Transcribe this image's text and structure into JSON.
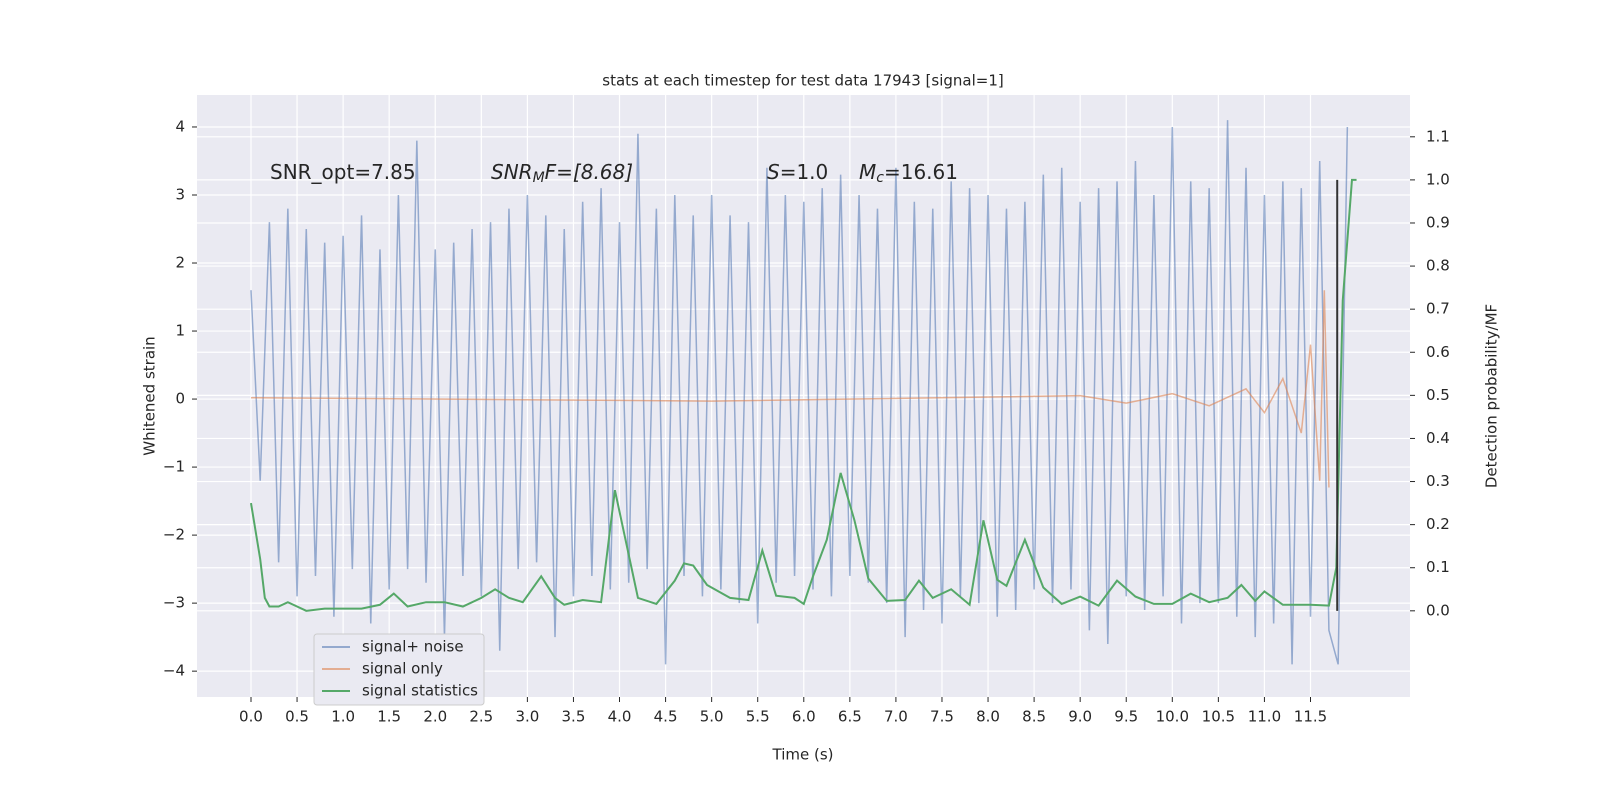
{
  "chart_data": {
    "type": "line",
    "title": "stats at each timestep for test data 17943 [signal=1]",
    "xlabel": "Time (s)",
    "ylabel": "Whitened strain",
    "y2label": "Detection probability/MF",
    "annotations": [
      {
        "main": "SNR_opt=7.85"
      },
      {
        "main": "SNR",
        "sub": "M",
        "rest": "F=[8.68]"
      },
      {
        "main": "S",
        "rest": "=1.0"
      },
      {
        "main": "M",
        "sub": "c",
        "rest": "=16.61"
      }
    ],
    "xlim": [
      -0.586,
      12.58
    ],
    "xticks": [
      {
        "value": 0,
        "label": "0.0"
      },
      0.5,
      {
        "value": 1,
        "label": "1.0"
      },
      1.5,
      {
        "value": 2,
        "label": "2.0"
      },
      2.5,
      {
        "value": 3,
        "label": "3.0"
      },
      3.5,
      {
        "value": 4,
        "label": "4.0"
      },
      4.5,
      {
        "value": 5,
        "label": "5.0"
      },
      5.5,
      {
        "value": 6,
        "label": "6.0"
      },
      6.5,
      {
        "value": 7,
        "label": "7.0"
      },
      7.5,
      {
        "value": 8,
        "label": "8.0"
      },
      8.5,
      {
        "value": 9,
        "label": "9.0"
      },
      9.5,
      {
        "value": 10,
        "label": "10.0"
      },
      10.5,
      {
        "value": 11,
        "label": "11.0"
      },
      11.5
    ],
    "ylim": [
      -4.38,
      4.47
    ],
    "yticks": [
      {
        "value": -4,
        "label": "−4"
      },
      {
        "value": -3,
        "label": "−3"
      },
      {
        "value": -2,
        "label": "−2"
      },
      {
        "value": -1,
        "label": "−1"
      },
      0,
      1,
      2,
      3,
      4
    ],
    "y2lim": [
      -0.2,
      1.197
    ],
    "y2ticks": [
      {
        "value": 0,
        "label": "0.0"
      },
      0.1,
      0.2,
      0.3,
      0.4,
      0.5,
      0.6,
      0.7,
      0.8,
      0.9,
      {
        "value": 1,
        "label": "1.0"
      },
      1.1
    ],
    "grid": true,
    "legend": "lower left",
    "vline": {
      "x": 11.79,
      "ymin": 0,
      "ymax": 1,
      "color": "#333333"
    },
    "series": [
      {
        "name": "signal+ noise",
        "color": "#4c72b0",
        "alpha": 0.55,
        "x": [
          0.0,
          0.1,
          0.2,
          0.3,
          0.4,
          0.5,
          0.6,
          0.7,
          0.8,
          0.9,
          1.0,
          1.1,
          1.2,
          1.3,
          1.4,
          1.5,
          1.6,
          1.7,
          1.8,
          1.9,
          2.0,
          2.1,
          2.2,
          2.3,
          2.4,
          2.5,
          2.6,
          2.7,
          2.8,
          2.9,
          3.0,
          3.1,
          3.2,
          3.3,
          3.4,
          3.5,
          3.6,
          3.7,
          3.8,
          3.9,
          4.0,
          4.1,
          4.2,
          4.3,
          4.4,
          4.5,
          4.6,
          4.7,
          4.8,
          4.9,
          5.0,
          5.1,
          5.2,
          5.3,
          5.4,
          5.5,
          5.6,
          5.7,
          5.8,
          5.9,
          6.0,
          6.1,
          6.2,
          6.3,
          6.4,
          6.5,
          6.6,
          6.7,
          6.8,
          6.9,
          7.0,
          7.1,
          7.2,
          7.3,
          7.4,
          7.5,
          7.6,
          7.7,
          7.8,
          7.9,
          8.0,
          8.1,
          8.2,
          8.3,
          8.4,
          8.5,
          8.6,
          8.7,
          8.8,
          8.9,
          9.0,
          9.1,
          9.2,
          9.3,
          9.4,
          9.5,
          9.6,
          9.7,
          9.8,
          9.9,
          10.0,
          10.1,
          10.2,
          10.3,
          10.4,
          10.5,
          10.6,
          10.7,
          10.8,
          10.9,
          11.0,
          11.1,
          11.2,
          11.3,
          11.4,
          11.5,
          11.6,
          11.7,
          11.8,
          11.9
        ],
        "values": [
          1.6,
          -1.2,
          2.6,
          -2.4,
          2.8,
          -2.9,
          2.5,
          -2.6,
          2.3,
          -3.2,
          2.4,
          -2.5,
          2.7,
          -3.3,
          2.2,
          -2.8,
          3.0,
          -2.5,
          3.8,
          -2.7,
          2.2,
          -3.5,
          2.3,
          -2.6,
          2.5,
          -2.9,
          2.6,
          -3.7,
          2.8,
          -2.5,
          3.0,
          -2.4,
          2.7,
          -3.5,
          2.5,
          -2.9,
          2.9,
          -2.6,
          3.1,
          -2.8,
          2.6,
          -2.7,
          3.9,
          -2.5,
          2.8,
          -3.9,
          3.0,
          -2.6,
          2.7,
          -2.9,
          3.0,
          -2.8,
          2.7,
          -3.0,
          2.6,
          -3.3,
          3.4,
          -2.7,
          3.0,
          -2.6,
          2.9,
          -2.8,
          3.1,
          -2.9,
          3.3,
          -2.6,
          3.0,
          -2.7,
          2.8,
          -3.0,
          3.4,
          -3.5,
          2.9,
          -3.1,
          2.8,
          -3.3,
          3.2,
          -2.9,
          3.1,
          -3.0,
          3.0,
          -3.2,
          2.8,
          -3.1,
          2.9,
          -2.8,
          3.3,
          -3.0,
          3.4,
          -2.8,
          2.9,
          -3.4,
          3.1,
          -3.6,
          3.2,
          -2.9,
          3.5,
          -3.1,
          3.0,
          -2.9,
          4.0,
          -3.3,
          3.2,
          -3.0,
          3.1,
          -3.0,
          4.1,
          -3.2,
          3.4,
          -3.5,
          3.0,
          -3.3,
          3.2,
          -3.9,
          3.1,
          -3.2,
          3.5,
          -3.4,
          -3.9,
          4.0
        ]
      },
      {
        "name": "signal only",
        "color": "#dd8452",
        "alpha": 0.6,
        "x": [
          0.0,
          5.0,
          9.0,
          9.5,
          10.0,
          10.4,
          10.8,
          11.0,
          11.2,
          11.4,
          11.5,
          11.6,
          11.65,
          11.7
        ],
        "values": [
          0.02,
          -0.03,
          0.05,
          -0.06,
          0.08,
          -0.1,
          0.15,
          -0.2,
          0.3,
          -0.5,
          0.8,
          -1.2,
          1.6,
          -1.3
        ]
      },
      {
        "name": "signal statistics",
        "color": "#55a868",
        "alpha": 1,
        "axis": "y2",
        "x": [
          0,
          0.1,
          0.15,
          0.2,
          0.3,
          0.4,
          0.5,
          0.6,
          0.8,
          1.0,
          1.2,
          1.4,
          1.55,
          1.7,
          1.9,
          2.1,
          2.3,
          2.5,
          2.65,
          2.8,
          2.95,
          3.15,
          3.3,
          3.4,
          3.6,
          3.8,
          3.95,
          4.1,
          4.2,
          4.4,
          4.6,
          4.7,
          4.8,
          4.95,
          5.2,
          5.4,
          5.55,
          5.7,
          5.9,
          6.0,
          6.1,
          6.25,
          6.4,
          6.55,
          6.7,
          6.9,
          7.1,
          7.25,
          7.4,
          7.6,
          7.8,
          7.95,
          8.1,
          8.2,
          8.4,
          8.6,
          8.8,
          9.0,
          9.2,
          9.4,
          9.6,
          9.8,
          10.0,
          10.2,
          10.4,
          10.6,
          10.75,
          10.9,
          11.0,
          11.2,
          11.5,
          11.7,
          11.78,
          11.85,
          11.95,
          12.0
        ],
        "values": [
          0.25,
          0.12,
          0.03,
          0.01,
          0.01,
          0.02,
          0.01,
          0.0,
          0.005,
          0.005,
          0.005,
          0.014,
          0.04,
          0.01,
          0.02,
          0.02,
          0.01,
          0.03,
          0.05,
          0.03,
          0.02,
          0.08,
          0.03,
          0.014,
          0.025,
          0.02,
          0.28,
          0.13,
          0.03,
          0.016,
          0.07,
          0.11,
          0.105,
          0.06,
          0.03,
          0.025,
          0.14,
          0.035,
          0.03,
          0.016,
          0.08,
          0.165,
          0.32,
          0.21,
          0.075,
          0.023,
          0.025,
          0.07,
          0.03,
          0.05,
          0.014,
          0.21,
          0.072,
          0.058,
          0.165,
          0.054,
          0.016,
          0.033,
          0.012,
          0.07,
          0.033,
          0.016,
          0.016,
          0.04,
          0.02,
          0.03,
          0.06,
          0.023,
          0.045,
          0.014,
          0.014,
          0.012,
          0.1,
          0.72,
          1.0,
          1.0
        ]
      }
    ]
  }
}
